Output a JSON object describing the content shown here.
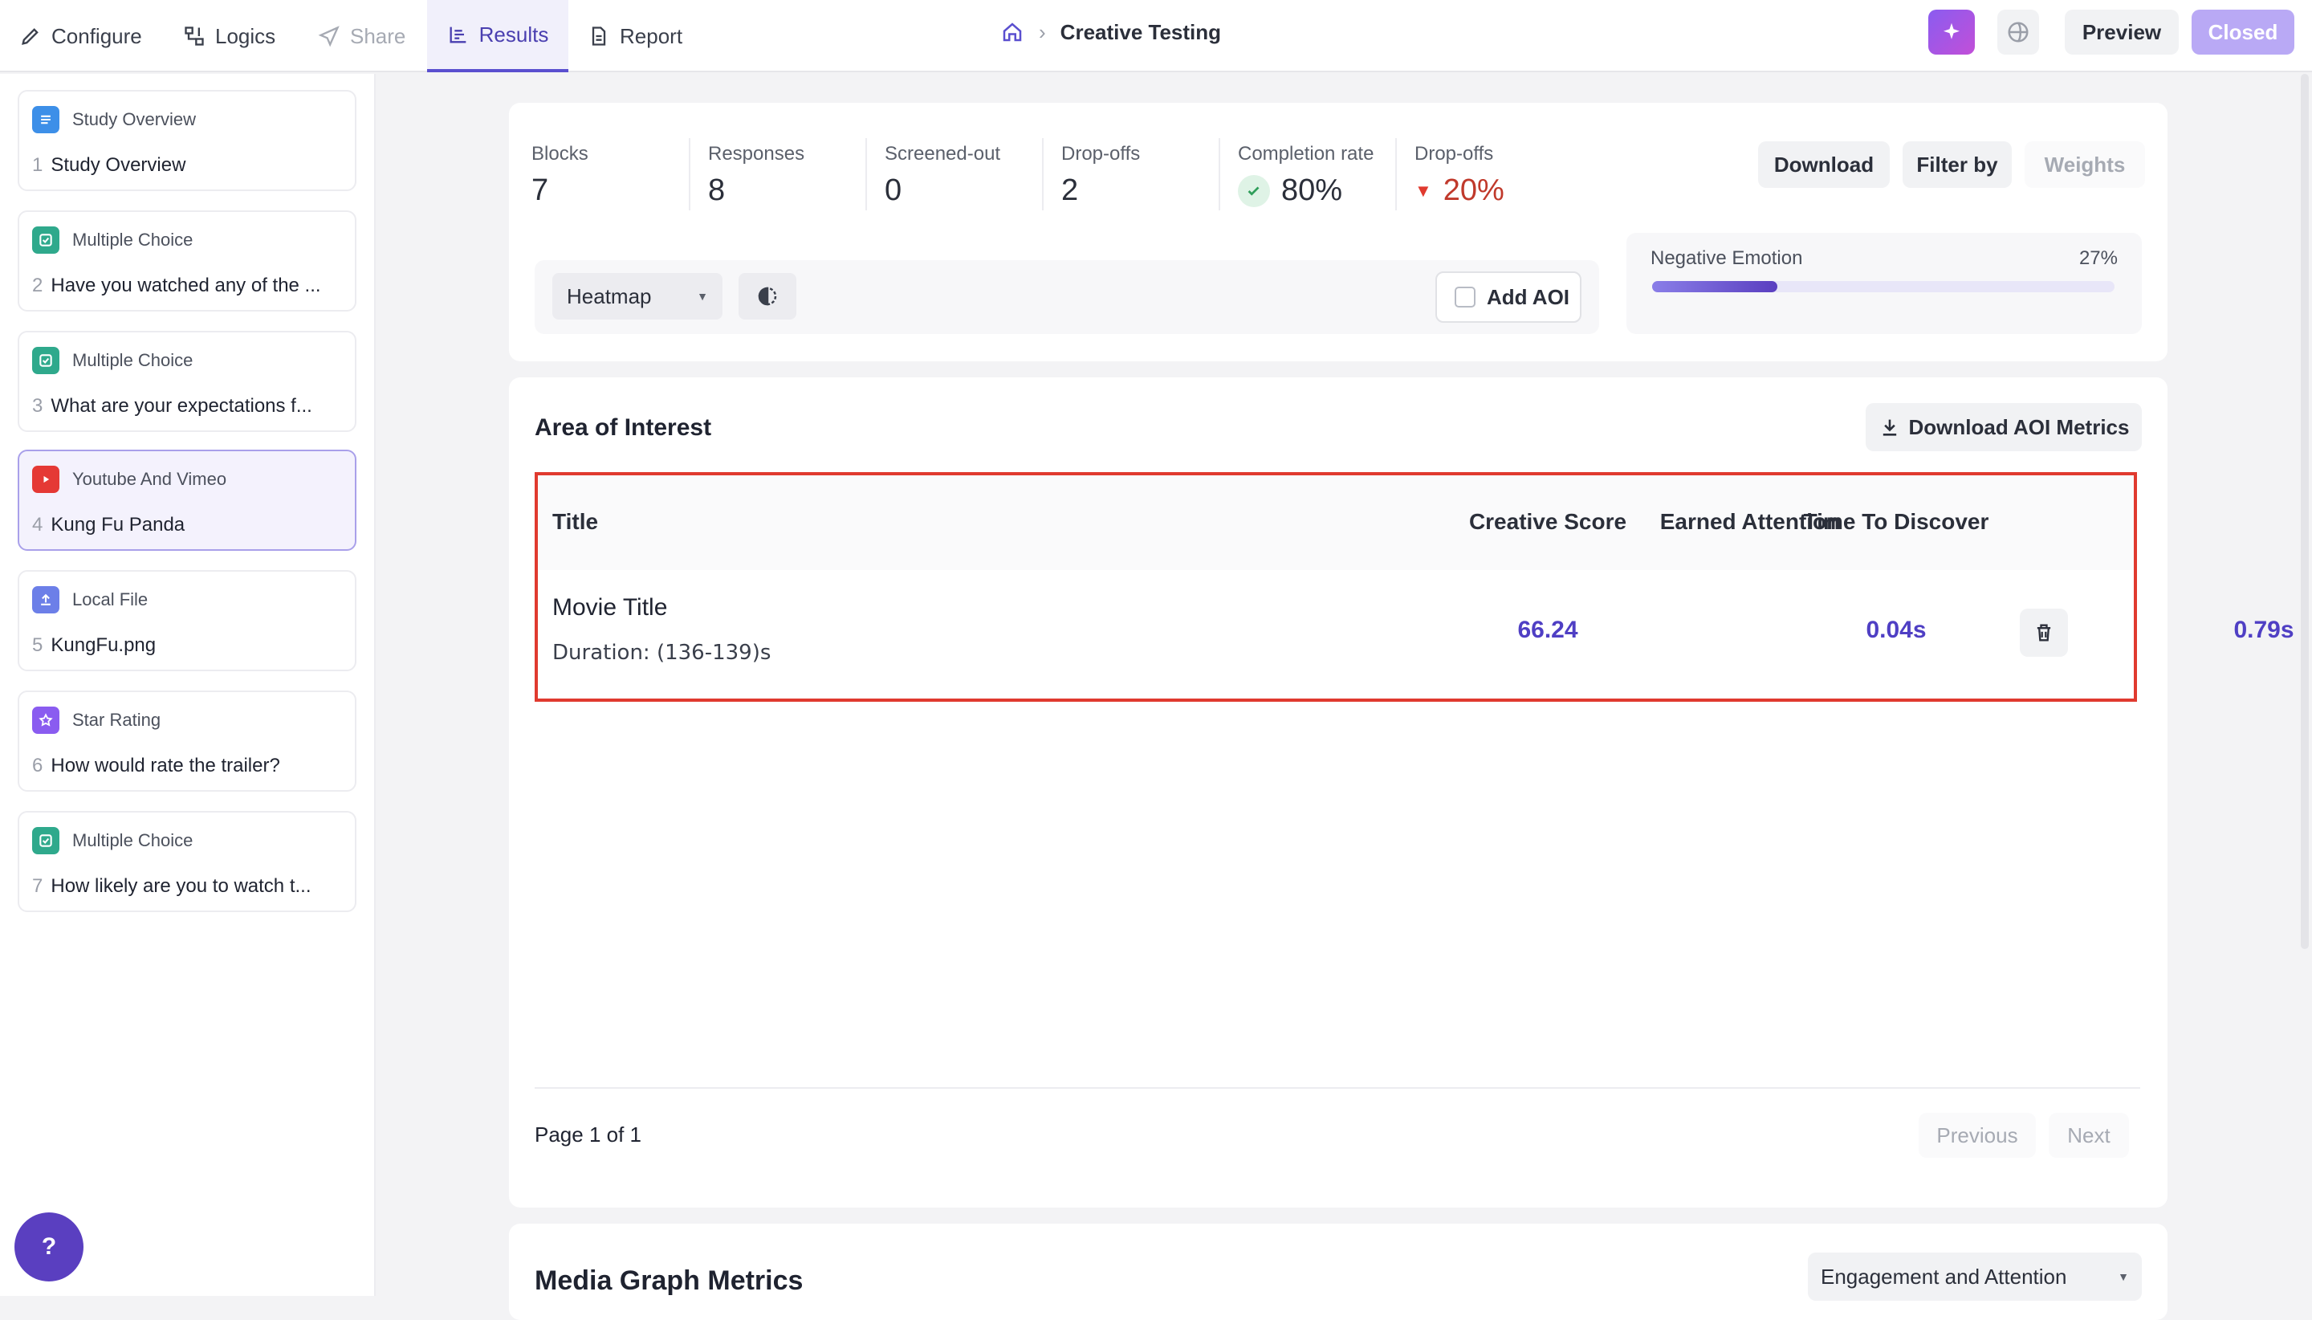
{
  "nav": {
    "tabs": [
      {
        "label": "Configure"
      },
      {
        "label": "Logics"
      },
      {
        "label": "Share"
      },
      {
        "label": "Results"
      },
      {
        "label": "Report"
      }
    ],
    "breadcrumb": "Creative Testing",
    "preview_label": "Preview",
    "closed_label": "Closed"
  },
  "sidebar": {
    "items": [
      {
        "type": "Study Overview",
        "number": "1",
        "text": "Study Overview"
      },
      {
        "type": "Multiple Choice",
        "number": "2",
        "text": "Have you watched any of the ..."
      },
      {
        "type": "Multiple Choice",
        "number": "3",
        "text": "What are your expectations f..."
      },
      {
        "type": "Youtube And Vimeo",
        "number": "4",
        "text": "Kung Fu Panda"
      },
      {
        "type": "Local File",
        "number": "5",
        "text": "KungFu.png"
      },
      {
        "type": "Star Rating",
        "number": "6",
        "text": "How would rate the trailer?"
      },
      {
        "type": "Multiple Choice",
        "number": "7",
        "text": "How likely are you to watch t..."
      }
    ],
    "help_label": "?"
  },
  "stats": {
    "blocks": {
      "label": "Blocks",
      "value": "7"
    },
    "responses": {
      "label": "Responses",
      "value": "8"
    },
    "screened": {
      "label": "Screened-out",
      "value": "0"
    },
    "dropoffs": {
      "label": "Drop-offs",
      "value": "2"
    },
    "completion": {
      "label": "Completion rate",
      "value": "80%"
    },
    "dropoff_rate": {
      "label": "Drop-offs",
      "value": "20%"
    }
  },
  "actions": {
    "download": "Download",
    "filter": "Filter by",
    "weights": "Weights"
  },
  "heatmap": {
    "select_value": "Heatmap",
    "add_aoi": "Add AOI"
  },
  "emotion": {
    "label": "Negative Emotion",
    "value": "27%",
    "fraction": 0.27
  },
  "aoi": {
    "title": "Area of Interest",
    "download_metrics": "Download AOI Metrics",
    "columns": {
      "title": "Title",
      "creative_score": "Creative Score",
      "time_to_discover": "Time To Discover",
      "earned_attention": "Earned Attention"
    },
    "rows": [
      {
        "title": "Movie Title",
        "duration": "Duration: (136-139)s",
        "creative_score": "66.24",
        "time_to_discover": "0.04s",
        "earned_attention": "0.79s"
      }
    ],
    "pagination": {
      "label": "Page 1 of 1",
      "previous": "Previous",
      "next": "Next"
    }
  },
  "media_graph": {
    "title": "Media Graph Metrics",
    "select_value": "Engagement and Attention"
  },
  "colors": {
    "accent": "#5a4fcf",
    "highlight_border": "#e03a2f",
    "negative": "#c0392b",
    "positive": "#2f9e5a"
  }
}
